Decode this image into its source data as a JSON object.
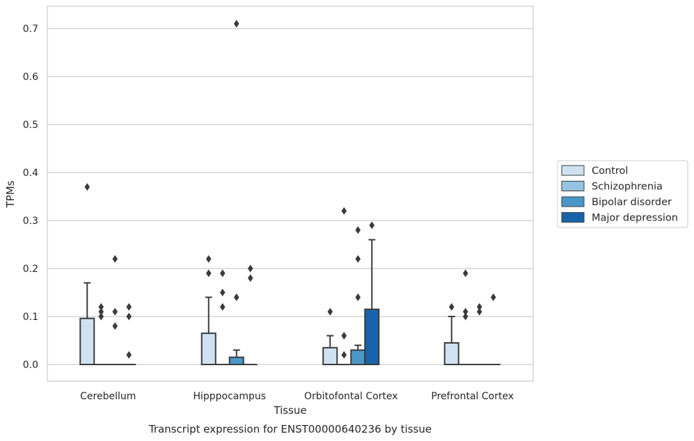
{
  "chart_data": {
    "type": "box",
    "xlabel": "Tissue",
    "ylabel": "TPMs",
    "caption": "Transcript expression for ENST00000640236 by tissue",
    "ylim": [
      -0.035,
      0.745
    ],
    "yticks": [
      0.0,
      0.1,
      0.2,
      0.3,
      0.4,
      0.5,
      0.6,
      0.7
    ],
    "ytick_labels": [
      "0.0",
      "0.1",
      "0.2",
      "0.3",
      "0.4",
      "0.5",
      "0.6",
      "0.7"
    ],
    "grid": "horizontal",
    "legend_position": "outside-right",
    "categories": [
      "Cerebellum",
      "Hipppocampus",
      "Orbitofontal Cortex",
      "Prefrontal Cortex"
    ],
    "series": [
      {
        "name": "Control",
        "color": "#d0e1f2",
        "boxes": [
          {
            "q1": 0.0,
            "median": 0.0,
            "q3": 0.096,
            "whisker_low": 0.0,
            "whisker_high": 0.17,
            "outliers": [
              0.37
            ]
          },
          {
            "q1": 0.0,
            "median": 0.0,
            "q3": 0.065,
            "whisker_low": 0.0,
            "whisker_high": 0.14,
            "outliers": [
              0.22,
              0.19
            ]
          },
          {
            "q1": 0.0,
            "median": 0.0,
            "q3": 0.035,
            "whisker_low": 0.0,
            "whisker_high": 0.06,
            "outliers": [
              0.11
            ]
          },
          {
            "q1": 0.0,
            "median": 0.0,
            "q3": 0.045,
            "whisker_low": 0.0,
            "whisker_high": 0.1,
            "outliers": [
              0.12
            ]
          }
        ]
      },
      {
        "name": "Schizophrenia",
        "color": "#94c4df",
        "boxes": [
          {
            "q1": 0.0,
            "median": 0.0,
            "q3": 0.0,
            "whisker_low": 0.0,
            "whisker_high": 0.0,
            "outliers": [
              0.12,
              0.11,
              0.1
            ]
          },
          {
            "q1": 0.0,
            "median": 0.0,
            "q3": 0.0,
            "whisker_low": 0.0,
            "whisker_high": 0.0,
            "outliers": [
              0.19,
              0.15,
              0.12
            ]
          },
          {
            "q1": 0.0,
            "median": 0.0,
            "q3": 0.0,
            "whisker_low": 0.0,
            "whisker_high": 0.0,
            "outliers": [
              0.32,
              0.06,
              0.02
            ]
          },
          {
            "q1": 0.0,
            "median": 0.0,
            "q3": 0.0,
            "whisker_low": 0.0,
            "whisker_high": 0.0,
            "outliers": [
              0.19,
              0.11,
              0.1
            ]
          }
        ]
      },
      {
        "name": "Bipolar disorder",
        "color": "#4a98c9",
        "boxes": [
          {
            "q1": 0.0,
            "median": 0.0,
            "q3": 0.0,
            "whisker_low": 0.0,
            "whisker_high": 0.0,
            "outliers": [
              0.22,
              0.11,
              0.08
            ]
          },
          {
            "q1": 0.0,
            "median": 0.0,
            "q3": 0.015,
            "whisker_low": 0.0,
            "whisker_high": 0.03,
            "outliers": [
              0.71,
              0.14
            ]
          },
          {
            "q1": 0.0,
            "median": 0.0,
            "q3": 0.03,
            "whisker_low": 0.0,
            "whisker_high": 0.04,
            "outliers": [
              0.28,
              0.22,
              0.14
            ]
          },
          {
            "q1": 0.0,
            "median": 0.0,
            "q3": 0.0,
            "whisker_low": 0.0,
            "whisker_high": 0.0,
            "outliers": [
              0.12,
              0.11
            ]
          }
        ]
      },
      {
        "name": "Major depression",
        "color": "#1764ab",
        "boxes": [
          {
            "q1": 0.0,
            "median": 0.0,
            "q3": 0.0,
            "whisker_low": 0.0,
            "whisker_high": 0.0,
            "outliers": [
              0.12,
              0.1,
              0.02
            ]
          },
          {
            "q1": 0.0,
            "median": 0.0,
            "q3": 0.0,
            "whisker_low": 0.0,
            "whisker_high": 0.0,
            "outliers": [
              0.2,
              0.18
            ]
          },
          {
            "q1": 0.0,
            "median": 0.0,
            "q3": 0.115,
            "whisker_low": 0.0,
            "whisker_high": 0.26,
            "outliers": [
              0.29
            ]
          },
          {
            "q1": 0.0,
            "median": 0.0,
            "q3": 0.0,
            "whisker_low": 0.0,
            "whisker_high": 0.0,
            "outliers": [
              0.14
            ]
          }
        ]
      }
    ],
    "line_color": "#3b3b3b",
    "grid_color": "#cccccc",
    "frame_color": "#cccccc"
  }
}
